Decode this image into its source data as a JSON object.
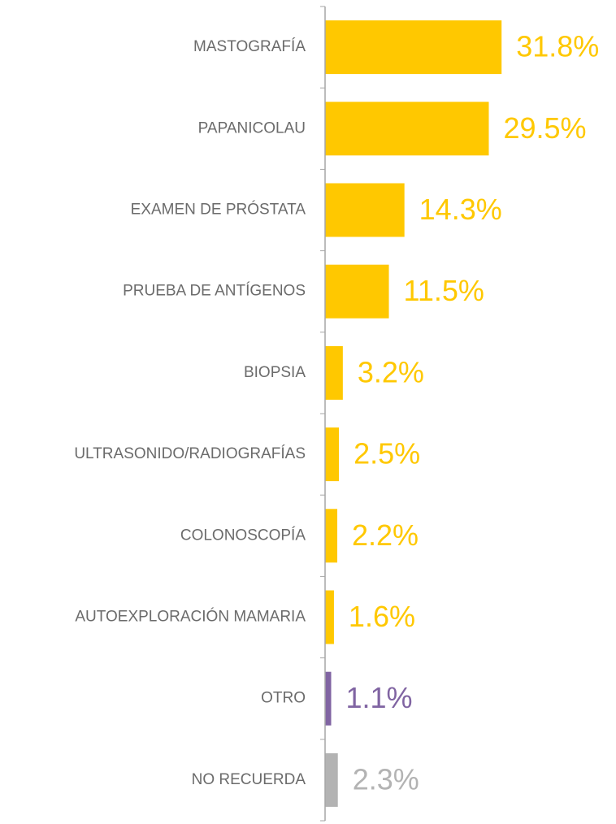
{
  "chart_data": {
    "type": "barh",
    "categories": [
      "MASTOGRAFÍA",
      "PAPANICOLAU",
      "EXAMEN DE PRÓSTATA",
      "PRUEBA DE ANTÍGENOS",
      "BIOPSIA",
      "ULTRASONIDO/RADIOGRAFÍAS",
      "COLONOSCOPÍA",
      "AUTOEXPLORACIÓN MAMARIA",
      "OTRO",
      "NO RECUERDA"
    ],
    "values": [
      31.8,
      29.5,
      14.3,
      11.5,
      3.2,
      2.5,
      2.2,
      1.6,
      1.1,
      2.3
    ],
    "value_labels": [
      "31.8%",
      "29.5%",
      "14.3%",
      "11.5%",
      "3.2%",
      "2.5%",
      "2.2%",
      "1.6%",
      "1.1%",
      "2.3%"
    ],
    "colors": [
      "#ffc800",
      "#ffc800",
      "#ffc800",
      "#ffc800",
      "#ffc800",
      "#ffc800",
      "#ffc800",
      "#ffc800",
      "#8064a2",
      "#b3b3b3"
    ],
    "xlim": [
      0,
      50
    ]
  }
}
